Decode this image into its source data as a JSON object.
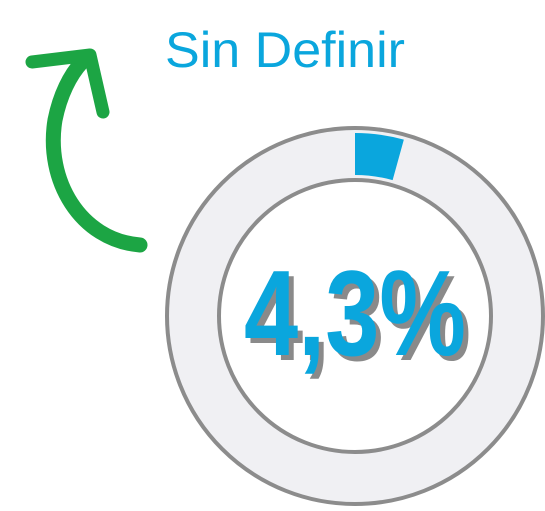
{
  "chart_data": {
    "type": "donut",
    "title": "Sin Definir",
    "values": [
      4.3
    ],
    "value_labels": [
      "4,3%"
    ],
    "color": "#0aa6dd"
  }
}
